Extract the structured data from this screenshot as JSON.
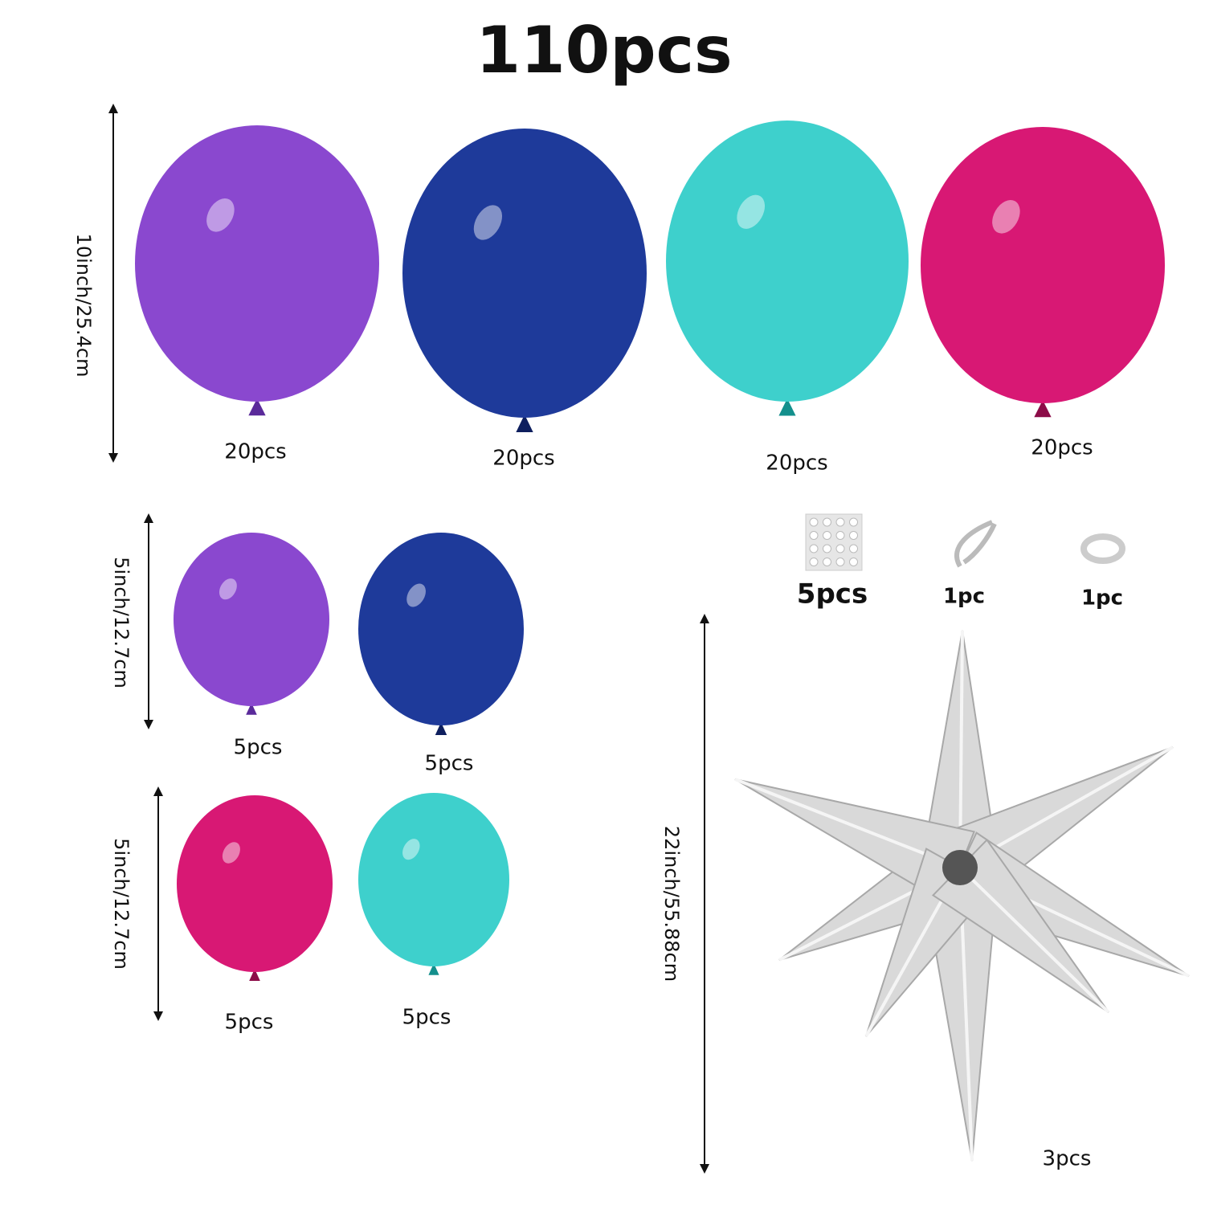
{
  "title": "110pcs",
  "large": {
    "dimension": "10inch/25.4cm",
    "balloons": [
      {
        "label": "20pcs"
      },
      {
        "label": "20pcs"
      },
      {
        "label": "20pcs"
      },
      {
        "label": "20pcs"
      }
    ]
  },
  "small_rows": [
    {
      "dimension": "5inch/12.7cm",
      "balloons": [
        {
          "label": "5pcs"
        },
        {
          "label": "5pcs"
        }
      ]
    },
    {
      "dimension": "5inch/12.7cm",
      "balloons": [
        {
          "label": "5pcs"
        },
        {
          "label": "5pcs"
        }
      ]
    }
  ],
  "accessories": [
    {
      "label": "5pcs"
    },
    {
      "label": "1pc"
    },
    {
      "label": "1pc"
    }
  ],
  "star": {
    "dimension": "22inch/55.88cm",
    "label": "3pcs"
  }
}
